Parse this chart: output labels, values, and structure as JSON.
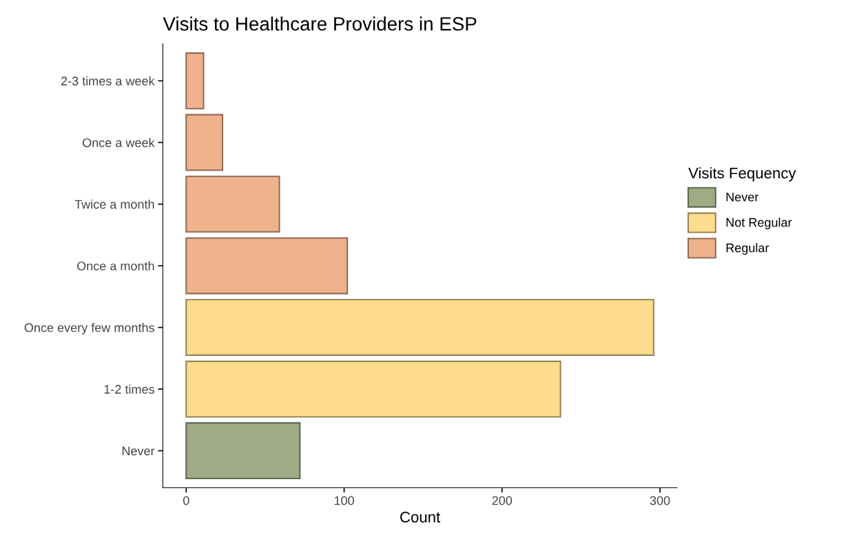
{
  "chart_data": {
    "type": "bar",
    "orientation": "horizontal",
    "title": "Visits to Healthcare Providers in ESP",
    "xlabel": "Count",
    "legend_title": "Visits Fequency",
    "legend": "right",
    "categories": [
      "2-3 times a week",
      "Once a week",
      "Twice a month",
      "Once a month",
      "Once every few months",
      "1-2 times",
      "Never"
    ],
    "series": [
      {
        "name": "Never",
        "color": "#9eab84",
        "values": [
          null,
          null,
          null,
          null,
          null,
          null,
          72
        ]
      },
      {
        "name": "Not Regular",
        "color": "#fddc8d",
        "values": [
          null,
          null,
          null,
          null,
          296,
          237,
          null
        ]
      },
      {
        "name": "Regular",
        "color": "#f0b28c",
        "values": [
          11,
          23,
          59,
          102,
          null,
          null,
          null
        ]
      }
    ],
    "xlim": [
      -14.8,
      310.8
    ],
    "xticks": [
      0,
      100,
      200,
      300
    ],
    "grid": false
  }
}
